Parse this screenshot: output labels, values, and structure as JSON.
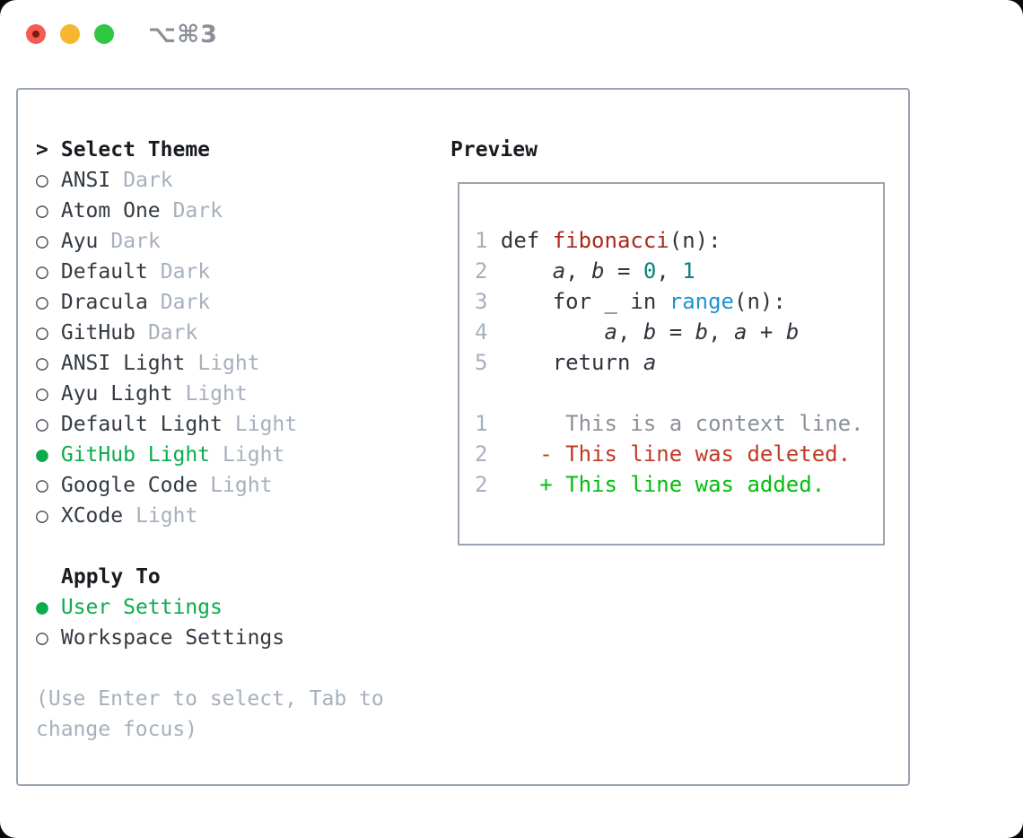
{
  "window": {
    "title": "⌥⌘3"
  },
  "picker": {
    "prompt": ">",
    "title": "Select Theme",
    "items": [
      {
        "label": "ANSI",
        "variant": "Dark",
        "selected": false
      },
      {
        "label": "Atom One",
        "variant": "Dark",
        "selected": false
      },
      {
        "label": "Ayu",
        "variant": "Dark",
        "selected": false
      },
      {
        "label": "Default",
        "variant": "Dark",
        "selected": false
      },
      {
        "label": "Dracula",
        "variant": "Dark",
        "selected": false
      },
      {
        "label": "GitHub",
        "variant": "Dark",
        "selected": false
      },
      {
        "label": "ANSI Light",
        "variant": "Light",
        "selected": false
      },
      {
        "label": "Ayu Light",
        "variant": "Light",
        "selected": false
      },
      {
        "label": "Default Light",
        "variant": "Light",
        "selected": false
      },
      {
        "label": "GitHub Light",
        "variant": "Light",
        "selected": true
      },
      {
        "label": "Google Code",
        "variant": "Light",
        "selected": false
      },
      {
        "label": "XCode",
        "variant": "Light",
        "selected": false
      }
    ]
  },
  "apply_to": {
    "title": "Apply To",
    "options": [
      {
        "label": "User Settings",
        "selected": true
      },
      {
        "label": "Workspace Settings",
        "selected": false
      }
    ]
  },
  "hint": {
    "line1": "(Use Enter to select, Tab to",
    "line2": "change focus)"
  },
  "preview": {
    "title": "Preview",
    "lines": [
      {
        "kind": "code",
        "num": "1",
        "tokens": [
          {
            "t": "def ",
            "s": "p"
          },
          {
            "t": "fibonacci",
            "s": "fn"
          },
          {
            "t": "(n):",
            "s": "p"
          }
        ]
      },
      {
        "kind": "code",
        "num": "2",
        "tokens": [
          {
            "t": "    ",
            "s": "p"
          },
          {
            "t": "a",
            "s": "v"
          },
          {
            "t": ", ",
            "s": "p"
          },
          {
            "t": "b",
            "s": "v"
          },
          {
            "t": " = ",
            "s": "p"
          },
          {
            "t": "0",
            "s": "n"
          },
          {
            "t": ", ",
            "s": "p"
          },
          {
            "t": "1",
            "s": "n"
          }
        ]
      },
      {
        "kind": "code",
        "num": "3",
        "tokens": [
          {
            "t": "    for _ in ",
            "s": "p"
          },
          {
            "t": "range",
            "s": "b"
          },
          {
            "t": "(n):",
            "s": "p"
          }
        ]
      },
      {
        "kind": "code",
        "num": "4",
        "tokens": [
          {
            "t": "        ",
            "s": "p"
          },
          {
            "t": "a",
            "s": "v"
          },
          {
            "t": ", ",
            "s": "p"
          },
          {
            "t": "b",
            "s": "v"
          },
          {
            "t": " = ",
            "s": "p"
          },
          {
            "t": "b",
            "s": "v"
          },
          {
            "t": ", ",
            "s": "p"
          },
          {
            "t": "a",
            "s": "v"
          },
          {
            "t": " + ",
            "s": "p"
          },
          {
            "t": "b",
            "s": "v"
          }
        ]
      },
      {
        "kind": "code",
        "num": "5",
        "tokens": [
          {
            "t": "    return ",
            "s": "p"
          },
          {
            "t": "a",
            "s": "v"
          }
        ]
      },
      {
        "kind": "blank",
        "num": "",
        "tokens": []
      },
      {
        "kind": "context",
        "num": "1",
        "tokens": [
          {
            "t": "     This is a context line.",
            "s": "ctx"
          }
        ]
      },
      {
        "kind": "deleted",
        "num": "2",
        "tokens": [
          {
            "t": "   ",
            "s": "p"
          },
          {
            "t": "- This line was deleted.",
            "s": "del"
          }
        ]
      },
      {
        "kind": "added",
        "num": "2",
        "tokens": [
          {
            "t": "   ",
            "s": "p"
          },
          {
            "t": "+ This line was added.",
            "s": "add"
          }
        ]
      }
    ]
  },
  "colors": {
    "text_dark": "#181c20",
    "name_dark": "#333a42",
    "muted_gray": "#a6b0bc",
    "circle_gray": "#434b54",
    "accent_green": "#0cab4c",
    "border_gray": "#9aa5b1",
    "code_dark": "#2f363e",
    "function_red": "#a8291d",
    "number_teal": "#0b8278",
    "builtin_blue": "#1e93d3",
    "context_gray": "#8b9199",
    "deleted_red": "#c23a22",
    "added_green": "#02bd0f",
    "title_gray": "#8a9097",
    "tl_red": "#f45c52",
    "tl_yellow": "#f6b62e",
    "tl_green": "#2ec740",
    "tl_red_dot": "#7e1a12"
  }
}
